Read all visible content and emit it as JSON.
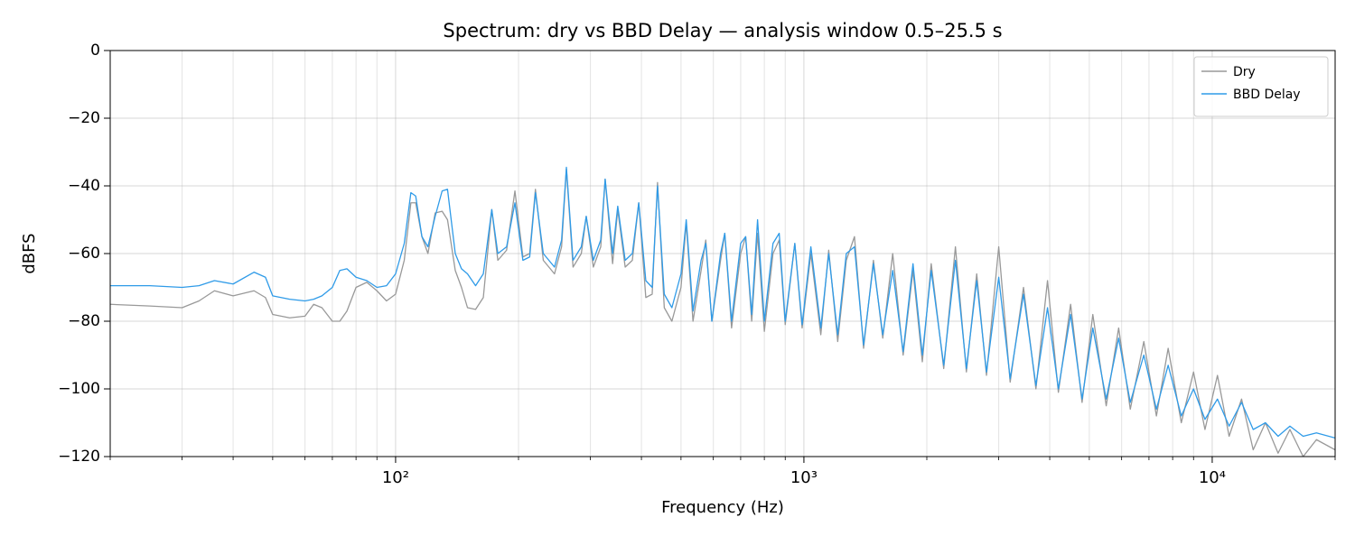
{
  "chart_data": {
    "type": "line",
    "title": "Spectrum: dry vs BBD Delay — analysis window 0.5–25.5 s",
    "x_label": "Frequency (Hz)",
    "y_label": "dBFS",
    "xscale": "log",
    "grid": true,
    "legend": "upper right",
    "xlim": [
      20,
      20000
    ],
    "ylim": [
      -120,
      0
    ],
    "xticks": [
      {
        "value": 100,
        "label": "10²"
      },
      {
        "value": 1000,
        "label": "10³"
      },
      {
        "value": 10000,
        "label": "10⁴"
      }
    ],
    "xticks_minor": [
      20,
      30,
      40,
      50,
      60,
      70,
      80,
      90,
      200,
      300,
      400,
      500,
      600,
      700,
      800,
      900,
      2000,
      3000,
      4000,
      5000,
      6000,
      7000,
      8000,
      9000,
      20000
    ],
    "yticks": [
      {
        "value": -120,
        "label": "−120"
      },
      {
        "value": -100,
        "label": "−100"
      },
      {
        "value": -80,
        "label": "−80"
      },
      {
        "value": -60,
        "label": "−60"
      },
      {
        "value": -40,
        "label": "−40"
      },
      {
        "value": -20,
        "label": "−20"
      },
      0
    ],
    "x": [
      20,
      25,
      30,
      33,
      36,
      40,
      45,
      48,
      50,
      55,
      60,
      63,
      66,
      70,
      73,
      76,
      80,
      85,
      90,
      95,
      100,
      105,
      109,
      112,
      116,
      120,
      125,
      130,
      134,
      140,
      145,
      150,
      157,
      164,
      172,
      178,
      187,
      196,
      205,
      213,
      220,
      230,
      245,
      255,
      262,
      272,
      285,
      293,
      305,
      318,
      326,
      340,
      350,
      365,
      380,
      394,
      410,
      425,
      438,
      455,
      475,
      500,
      515,
      535,
      560,
      575,
      595,
      625,
      640,
      665,
      700,
      720,
      745,
      770,
      800,
      840,
      870,
      900,
      950,
      990,
      1040,
      1100,
      1150,
      1210,
      1270,
      1330,
      1400,
      1480,
      1560,
      1650,
      1750,
      1850,
      1950,
      2050,
      2200,
      2350,
      2500,
      2650,
      2800,
      3000,
      3200,
      3450,
      3700,
      3950,
      4200,
      4500,
      4800,
      5100,
      5500,
      5900,
      6300,
      6800,
      7300,
      7800,
      8400,
      9000,
      9600,
      10300,
      11000,
      11800,
      12600,
      13500,
      14500,
      15500,
      16700,
      18000,
      20000
    ],
    "series": [
      {
        "name": "Dry",
        "color": "#999999",
        "values": [
          -75,
          -75.5,
          -76,
          -74,
          -71,
          -72.5,
          -71,
          -73,
          -78,
          -79,
          -78.5,
          -75,
          -76,
          -80,
          -80,
          -77,
          -70,
          -68.5,
          -71,
          -74,
          -72,
          -62,
          -45,
          -45,
          -55,
          -60,
          -48,
          -47.5,
          -50,
          -65,
          -70,
          -76,
          -76.5,
          -73,
          -47,
          -62,
          -59,
          -41.5,
          -61,
          -60,
          -41,
          -62,
          -66,
          -58,
          -35,
          -64,
          -60,
          -49,
          -64,
          -58,
          -38,
          -63,
          -47,
          -64,
          -62,
          -45,
          -73,
          -72,
          -39,
          -76,
          -80,
          -70,
          -51,
          -80,
          -65,
          -56,
          -80,
          -62,
          -54,
          -82,
          -60,
          -55,
          -80,
          -54,
          -83,
          -60,
          -56,
          -81,
          -57,
          -82,
          -60,
          -84,
          -59,
          -86,
          -62,
          -55,
          -88,
          -62,
          -85,
          -60,
          -90,
          -65,
          -92,
          -63,
          -94,
          -58,
          -95,
          -66,
          -96,
          -58,
          -98,
          -70,
          -100,
          -68,
          -101,
          -75,
          -104,
          -78,
          -105,
          -82,
          -106,
          -86,
          -108,
          -88,
          -110,
          -95,
          -112,
          -96,
          -114,
          -103,
          -118,
          -110,
          -119,
          -112,
          -120,
          -115,
          -118
        ]
      },
      {
        "name": "BBD Delay",
        "color": "#2f9be8",
        "values": [
          -69.5,
          -69.5,
          -70,
          -69.5,
          -68,
          -69,
          -65.5,
          -67,
          -72.5,
          -73.5,
          -74,
          -73.5,
          -72.5,
          -70,
          -65,
          -64.5,
          -67,
          -68,
          -70,
          -69.5,
          -66,
          -57,
          -42,
          -43,
          -55,
          -58,
          -49,
          -41.5,
          -41,
          -60,
          -64.5,
          -66,
          -69.5,
          -66,
          -47,
          -60,
          -58,
          -45,
          -62,
          -61,
          -42,
          -60,
          -64,
          -56,
          -34.5,
          -62,
          -58,
          -49,
          -62,
          -56,
          -38,
          -60,
          -46,
          -62,
          -60,
          -45,
          -68,
          -70,
          -40,
          -72,
          -76,
          -66,
          -50,
          -77,
          -62,
          -57,
          -80,
          -60,
          -54,
          -80,
          -57,
          -55,
          -78,
          -50,
          -80,
          -57,
          -54,
          -80,
          -57,
          -81,
          -58,
          -82,
          -60,
          -84,
          -60,
          -58,
          -87,
          -63,
          -84,
          -65,
          -89,
          -63,
          -90,
          -65,
          -93,
          -62,
          -94,
          -68,
          -95,
          -67,
          -97,
          -72,
          -99,
          -76,
          -100,
          -78,
          -103,
          -82,
          -103,
          -85,
          -104,
          -90,
          -106,
          -93,
          -108,
          -100,
          -109,
          -103,
          -111,
          -104,
          -112,
          -110,
          -114,
          -111,
          -114,
          -113,
          -114.5
        ]
      }
    ]
  }
}
